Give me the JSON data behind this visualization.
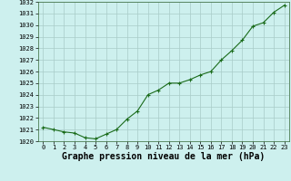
{
  "x": [
    0,
    1,
    2,
    3,
    4,
    5,
    6,
    7,
    8,
    9,
    10,
    11,
    12,
    13,
    14,
    15,
    16,
    17,
    18,
    19,
    20,
    21,
    22,
    23
  ],
  "y": [
    1021.2,
    1021.0,
    1020.8,
    1020.7,
    1020.3,
    1020.2,
    1020.6,
    1021.0,
    1021.9,
    1022.6,
    1024.0,
    1024.4,
    1025.0,
    1025.0,
    1025.3,
    1025.7,
    1026.0,
    1027.0,
    1027.8,
    1028.7,
    1029.9,
    1030.2,
    1031.1,
    1031.7
  ],
  "ylim": [
    1020,
    1032
  ],
  "yticks": [
    1020,
    1021,
    1022,
    1023,
    1024,
    1025,
    1026,
    1027,
    1028,
    1029,
    1030,
    1031,
    1032
  ],
  "xticks": [
    0,
    1,
    2,
    3,
    4,
    5,
    6,
    7,
    8,
    9,
    10,
    11,
    12,
    13,
    14,
    15,
    16,
    17,
    18,
    19,
    20,
    21,
    22,
    23
  ],
  "xlabel": "Graphe pression niveau de la mer (hPa)",
  "line_color": "#1a6b1a",
  "marker": "+",
  "marker_color": "#1a6b1a",
  "bg_color": "#cdf0ee",
  "grid_color": "#a8ccc8",
  "tick_fontsize": 5.0,
  "xlabel_fontsize": 7.0,
  "line_width": 0.8,
  "marker_size": 3.5
}
